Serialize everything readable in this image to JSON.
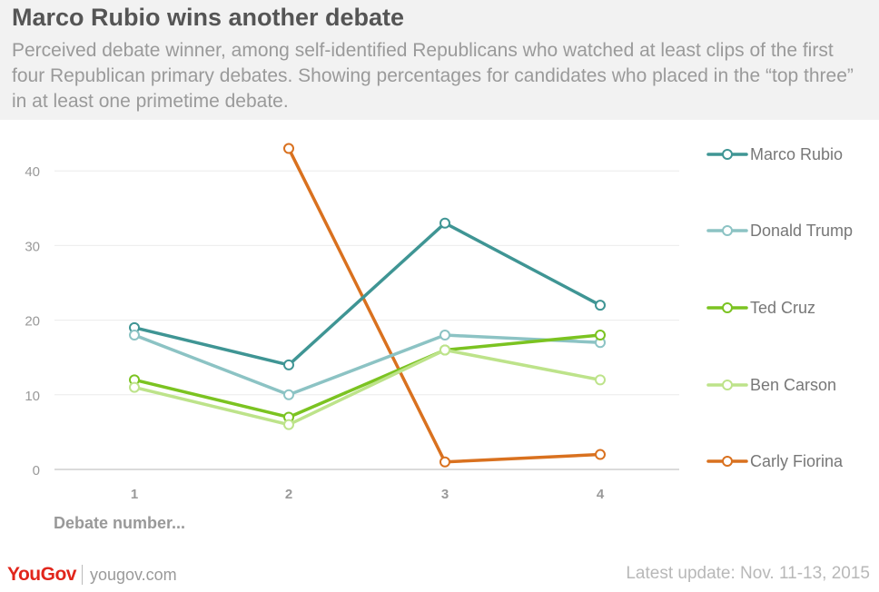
{
  "title": "Marco Rubio wins another debate",
  "subtitle": "Perceived debate winner, among self-identified Republicans who watched at least clips of the first four Republican primary debates. Showing percentages for candidates who placed in the “top three” in at least one primetime debate.",
  "footer": {
    "brand": "YouGov",
    "url": "yougov.com",
    "update": "Latest update: Nov. 11-13, 2015"
  },
  "chart_data": {
    "type": "line",
    "title": "Marco Rubio wins another debate",
    "xlabel": "Debate number...",
    "ylabel": "",
    "x": [
      1,
      2,
      3,
      4
    ],
    "x_ticks": [
      "1",
      "2",
      "3",
      "4"
    ],
    "y_ticks": [
      "0",
      "10",
      "20",
      "30",
      "40"
    ],
    "ylim": [
      0,
      43
    ],
    "grid": true,
    "legend_position": "right",
    "series": [
      {
        "name": "Marco Rubio",
        "color": "#3f9594",
        "values": [
          19,
          14,
          33,
          22
        ]
      },
      {
        "name": "Donald Trump",
        "color": "#8cc3c4",
        "values": [
          18,
          10,
          18,
          17
        ]
      },
      {
        "name": "Ted Cruz",
        "color": "#7bc321",
        "values": [
          12,
          7,
          16,
          18
        ]
      },
      {
        "name": "Ben Carson",
        "color": "#bde38a",
        "values": [
          11,
          6,
          16,
          12
        ]
      },
      {
        "name": "Carly Fiorina",
        "color": "#d9711f",
        "values": [
          null,
          43,
          1,
          2
        ]
      }
    ]
  }
}
